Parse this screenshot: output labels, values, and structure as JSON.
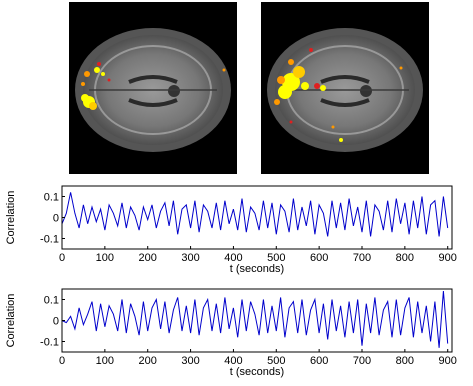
{
  "figure": {
    "images": [
      {
        "name": "axial-slice-left"
      },
      {
        "name": "axial-slice-right"
      }
    ],
    "activation_colors": [
      "#ffff00",
      "#ff9900",
      "#e02020"
    ]
  },
  "chart_data": [
    {
      "type": "line",
      "xlabel": "t (seconds)",
      "ylabel": "Correlation",
      "xlim": [
        0,
        910
      ],
      "ylim": [
        -0.15,
        0.15
      ],
      "xticks": [
        0,
        100,
        200,
        300,
        400,
        500,
        600,
        700,
        800,
        900
      ],
      "yticks": [
        -0.1,
        0,
        0.1
      ],
      "ytick_labels": [
        "-0.1",
        "0",
        "0.1"
      ],
      "grid": false,
      "color": "#0000cc",
      "series": [
        {
          "x": [
            0,
            10,
            20,
            30,
            40,
            50,
            60,
            70,
            80,
            90,
            100,
            110,
            120,
            130,
            140,
            150,
            160,
            170,
            180,
            190,
            200,
            210,
            220,
            230,
            240,
            250,
            260,
            270,
            280,
            290,
            300,
            310,
            320,
            330,
            340,
            350,
            360,
            370,
            380,
            390,
            400,
            410,
            420,
            430,
            440,
            450,
            460,
            470,
            480,
            490,
            500,
            510,
            520,
            530,
            540,
            550,
            560,
            570,
            580,
            590,
            600,
            610,
            620,
            630,
            640,
            650,
            660,
            670,
            680,
            690,
            700,
            710,
            720,
            730,
            740,
            750,
            760,
            770,
            780,
            790,
            800,
            810,
            820,
            830,
            840,
            850,
            860,
            870,
            880,
            890,
            900
          ],
          "values": [
            -0.03,
            0.02,
            0.12,
            0.02,
            -0.05,
            0.06,
            -0.03,
            0.05,
            -0.02,
            0.04,
            -0.06,
            0.06,
            0.02,
            -0.04,
            0.07,
            -0.05,
            0.05,
            0.01,
            -0.06,
            0.05,
            -0.01,
            0.06,
            -0.05,
            0.03,
            0.07,
            -0.04,
            0.08,
            -0.08,
            0.04,
            0.06,
            -0.05,
            0.08,
            -0.07,
            0.06,
            0.03,
            -0.05,
            0.07,
            -0.06,
            0.08,
            -0.03,
            0.04,
            -0.06,
            0.09,
            -0.07,
            0.05,
            0.02,
            -0.06,
            0.08,
            -0.05,
            0.07,
            -0.08,
            0.06,
            0.03,
            -0.07,
            0.09,
            -0.06,
            0.05,
            -0.04,
            0.08,
            -0.08,
            0.06,
            0.02,
            -0.09,
            0.08,
            -0.05,
            0.07,
            -0.06,
            0.09,
            -0.04,
            0.05,
            -0.07,
            0.08,
            -0.09,
            0.06,
            0.03,
            -0.06,
            0.08,
            -0.07,
            0.09,
            -0.03,
            0.07,
            -0.08,
            0.08,
            -0.05,
            0.1,
            -0.08,
            0.06,
            0.08,
            -0.09,
            0.1,
            -0.05
          ]
        }
      ]
    },
    {
      "type": "line",
      "xlabel": "t (seconds)",
      "ylabel": "Correlation",
      "xlim": [
        0,
        910
      ],
      "ylim": [
        -0.15,
        0.15
      ],
      "xticks": [
        0,
        100,
        200,
        300,
        400,
        500,
        600,
        700,
        800,
        900
      ],
      "yticks": [
        -0.1,
        0,
        0.1
      ],
      "ytick_labels": [
        "-0.1",
        "0",
        "0.1"
      ],
      "grid": false,
      "color": "#0000cc",
      "series": [
        {
          "x": [
            0,
            10,
            20,
            30,
            40,
            50,
            60,
            70,
            80,
            90,
            100,
            110,
            120,
            130,
            140,
            150,
            160,
            170,
            180,
            190,
            200,
            210,
            220,
            230,
            240,
            250,
            260,
            270,
            280,
            290,
            300,
            310,
            320,
            330,
            340,
            350,
            360,
            370,
            380,
            390,
            400,
            410,
            420,
            430,
            440,
            450,
            460,
            470,
            480,
            490,
            500,
            510,
            520,
            530,
            540,
            550,
            560,
            570,
            580,
            590,
            600,
            610,
            620,
            630,
            640,
            650,
            660,
            670,
            680,
            690,
            700,
            710,
            720,
            730,
            740,
            750,
            760,
            770,
            780,
            790,
            800,
            810,
            820,
            830,
            840,
            850,
            860,
            870,
            880,
            890,
            900
          ],
          "values": [
            0.0,
            -0.01,
            0.02,
            -0.04,
            0.06,
            -0.02,
            0.03,
            0.09,
            -0.05,
            0.08,
            -0.03,
            0.07,
            0.03,
            -0.05,
            0.1,
            -0.06,
            0.08,
            0.02,
            -0.07,
            0.09,
            -0.05,
            0.06,
            0.1,
            -0.04,
            0.09,
            -0.06,
            0.05,
            0.11,
            -0.05,
            0.07,
            -0.06,
            0.1,
            -0.07,
            0.06,
            0.1,
            -0.05,
            0.08,
            -0.06,
            0.11,
            -0.04,
            0.06,
            -0.08,
            0.1,
            -0.05,
            0.09,
            0.03,
            -0.07,
            0.1,
            -0.06,
            0.07,
            -0.05,
            0.11,
            -0.08,
            0.06,
            0.09,
            -0.06,
            0.1,
            -0.07,
            0.05,
            0.1,
            -0.06,
            0.08,
            -0.09,
            0.1,
            -0.05,
            0.07,
            -0.08,
            0.09,
            -0.06,
            0.1,
            -0.12,
            0.08,
            -0.06,
            0.11,
            -0.07,
            0.05,
            0.09,
            -0.08,
            0.1,
            -0.07,
            0.06,
            0.11,
            -0.08,
            0.09,
            -0.06,
            0.07,
            -0.1,
            0.09,
            -0.13,
            0.14,
            -0.11
          ]
        }
      ]
    }
  ]
}
